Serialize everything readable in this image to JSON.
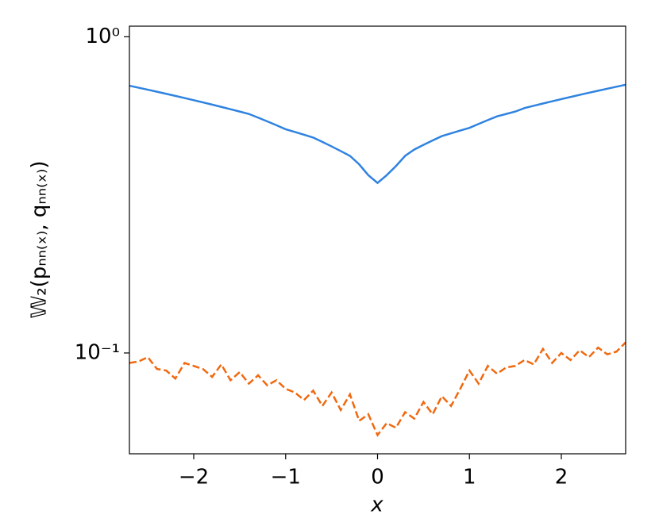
{
  "chart_data": {
    "type": "line",
    "x_label": "x",
    "y_label": "𝕎₂(pₙₙ₍ₓ₎, qₙₙ₍ₓ₎)",
    "x": [
      -2.7,
      -2.6,
      -2.5,
      -2.4,
      -2.3,
      -2.2,
      -2.1,
      -2.0,
      -1.9,
      -1.8,
      -1.7,
      -1.6,
      -1.5,
      -1.4,
      -1.3,
      -1.2,
      -1.1,
      -1.0,
      -0.9,
      -0.8,
      -0.7,
      -0.6,
      -0.5,
      -0.4,
      -0.3,
      -0.2,
      -0.1,
      0,
      0.1,
      0.2,
      0.3,
      0.4,
      0.5,
      0.6,
      0.7,
      0.8,
      0.9,
      1.0,
      1.1,
      1.2,
      1.3,
      1.4,
      1.5,
      1.6,
      1.7,
      1.8,
      1.9,
      2.0,
      2.1,
      2.2,
      2.3,
      2.4,
      2.5,
      2.6,
      2.7
    ],
    "series": [
      {
        "color": "#2f83e0",
        "dash": "solid",
        "values": [
          0.7,
          0.69,
          0.68,
          0.67,
          0.66,
          0.65,
          0.64,
          0.63,
          0.62,
          0.61,
          0.6,
          0.59,
          0.58,
          0.57,
          0.555,
          0.54,
          0.525,
          0.51,
          0.5,
          0.49,
          0.48,
          0.465,
          0.45,
          0.435,
          0.42,
          0.395,
          0.365,
          0.345,
          0.365,
          0.39,
          0.42,
          0.44,
          0.455,
          0.47,
          0.485,
          0.495,
          0.505,
          0.515,
          0.53,
          0.545,
          0.56,
          0.57,
          0.58,
          0.595,
          0.605,
          0.615,
          0.625,
          0.635,
          0.645,
          0.655,
          0.665,
          0.675,
          0.685,
          0.695,
          0.705
        ]
      },
      {
        "color": "#f0690f",
        "dash": "dashed",
        "values": [
          0.093,
          0.094,
          0.097,
          0.089,
          0.088,
          0.083,
          0.093,
          0.091,
          0.089,
          0.084,
          0.092,
          0.082,
          0.087,
          0.08,
          0.085,
          0.079,
          0.082,
          0.077,
          0.075,
          0.071,
          0.076,
          0.068,
          0.075,
          0.066,
          0.074,
          0.061,
          0.064,
          0.055,
          0.06,
          0.058,
          0.065,
          0.062,
          0.07,
          0.064,
          0.073,
          0.068,
          0.077,
          0.088,
          0.08,
          0.091,
          0.086,
          0.09,
          0.091,
          0.095,
          0.092,
          0.103,
          0.093,
          0.1,
          0.095,
          0.102,
          0.097,
          0.104,
          0.099,
          0.101,
          0.108
        ]
      }
    ],
    "xlim": [
      -2.7,
      2.7
    ],
    "xticks": [
      {
        "value": -2,
        "label": "−2"
      },
      {
        "value": -1,
        "label": "−1"
      },
      0,
      1,
      2
    ],
    "ylim": [
      0.048,
      1.08
    ],
    "yticks": [
      {
        "value": 0.1,
        "label": "10⁻¹"
      },
      {
        "value": 1,
        "label": "10⁰"
      }
    ],
    "yscale": "log",
    "grid": false
  }
}
